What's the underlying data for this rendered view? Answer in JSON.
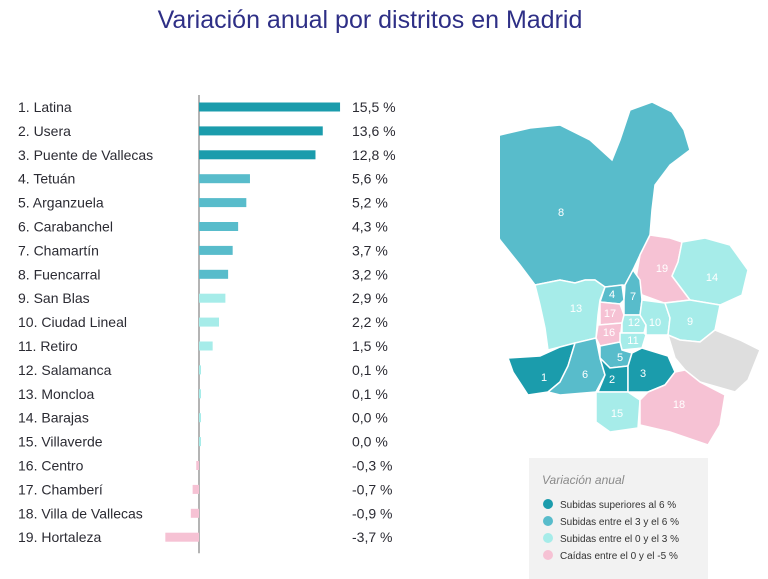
{
  "title": "Variación anual por distritos en Madrid",
  "colors": {
    "high": "#1b9cac",
    "mid": "#58bccb",
    "low": "#a6ece9",
    "negative": "#f6c2d4",
    "grey": "#dedede",
    "title": "#2e2f86",
    "axis": "#6a6a6a"
  },
  "chart_data": {
    "type": "bar",
    "orientation": "horizontal",
    "title": "Variación anual por distritos en Madrid",
    "xlabel": "",
    "ylabel": "",
    "unit": "%",
    "grid": false,
    "categories": [
      "1. Latina",
      "2. Usera",
      "3. Puente de Vallecas",
      "4. Tetuán",
      "5. Arganzuela",
      "6. Carabanchel",
      "7. Chamartín",
      "8. Fuencarral",
      "9. San Blas",
      "10. Ciudad Lineal",
      "11. Retiro",
      "12. Salamanca",
      "13. Moncloa",
      "14. Barajas",
      "15. Villaverde",
      "16. Centro",
      "17. Chamberí",
      "18. Villa de Vallecas",
      "19. Hortaleza"
    ],
    "values": [
      15.5,
      13.6,
      12.8,
      5.6,
      5.2,
      4.3,
      3.7,
      3.2,
      2.9,
      2.2,
      1.5,
      0.1,
      0.1,
      0.0,
      0.0,
      -0.3,
      -0.7,
      -0.9,
      -3.7
    ],
    "value_labels": [
      "15,5 %",
      "13,6 %",
      "12,8 %",
      "5,6 %",
      "5,2 %",
      "4,3 %",
      "3,7 %",
      "3,2 %",
      "2,9 %",
      "2,2 %",
      "1,5 %",
      "0,1 %",
      "0,1 %",
      "0,0 %",
      "0,0 %",
      "-0,3 %",
      "-0,7 %",
      "-0,9 %",
      "-3,7 %"
    ],
    "color_groups": [
      "high",
      "high",
      "high",
      "mid",
      "mid",
      "mid",
      "mid",
      "mid",
      "low",
      "low",
      "low",
      "low",
      "low",
      "low",
      "low",
      "negative",
      "negative",
      "negative",
      "negative"
    ]
  },
  "map": {
    "labels": [
      "1",
      "2",
      "3",
      "4",
      "5",
      "6",
      "7",
      "8",
      "9",
      "10",
      "11",
      "12",
      "13",
      "14",
      "15",
      "16",
      "17",
      "18",
      "19"
    ]
  },
  "legend": {
    "title": "Variación anual",
    "items": [
      {
        "label": "Subidas superiores al 6 %",
        "color": "#1b9cac"
      },
      {
        "label": "Subidas entre el 3 y el 6 %",
        "color": "#58bccb"
      },
      {
        "label": "Subidas entre el 0 y el 3 %",
        "color": "#a6ece9"
      },
      {
        "label": "Caídas entre el 0 y el -5 %",
        "color": "#f6c2d4"
      }
    ]
  }
}
